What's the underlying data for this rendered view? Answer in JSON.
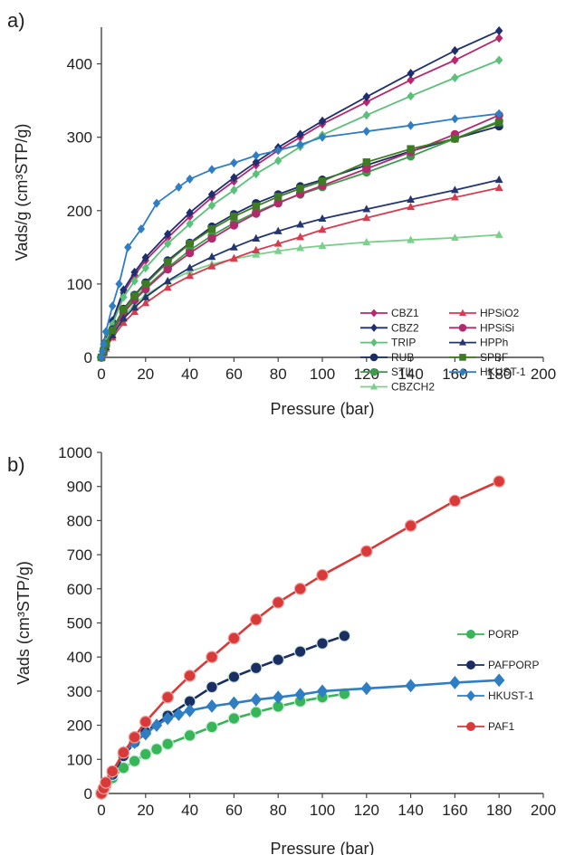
{
  "colors": {
    "CBZ1": "#b5286e",
    "CBZ2": "#1f2e6e",
    "TRIP": "#5cc07a",
    "RUB": "#1a2e63",
    "STIL": "#3e9b4b",
    "CBZCH2": "#7bd08c",
    "HPSiO2": "#d83a4e",
    "HPSiSi": "#b12a6e",
    "HPPh": "#24356f",
    "SPBF": "#3f7b25",
    "HKUST-1": "#2f7ec4",
    "PORP": "#36b559",
    "PAFPORP": "#1a2e63",
    "HKUST-1b": "#2f7ec4",
    "PAF1": "#d83a3a"
  },
  "chart_data": [
    {
      "type": "line",
      "panel_label": "a)",
      "xlabel": "Pressure (bar)",
      "ylabel": "Vads/g (cm³STP/g)",
      "xlim": [
        0,
        200
      ],
      "ylim": [
        0,
        450
      ],
      "x_ticks": [
        "0",
        "20",
        "40",
        "60",
        "80",
        "100",
        "120",
        "140",
        "160",
        "180",
        "200"
      ],
      "y_ticks": [
        "0",
        "100",
        "200",
        "300",
        "400"
      ],
      "legend_position": "bottom-right",
      "legend_columns": [
        [
          "CBZ1",
          "CBZ2",
          "TRIP",
          "RUB",
          "STIL",
          "CBZCH2"
        ],
        [
          "HPSiO2",
          "HPSiSi",
          "HPPh",
          "SPBF",
          "HKUST-1"
        ]
      ],
      "series": [
        {
          "name": "CBZ1",
          "marker": "diamond",
          "x": [
            0,
            1,
            2,
            5,
            10,
            15,
            20,
            30,
            40,
            50,
            60,
            70,
            80,
            90,
            100,
            120,
            140,
            160,
            180
          ],
          "y": [
            0,
            10,
            22,
            48,
            88,
            112,
            132,
            163,
            192,
            218,
            240,
            262,
            282,
            300,
            318,
            348,
            378,
            405,
            435
          ]
        },
        {
          "name": "CBZ2",
          "marker": "diamond",
          "x": [
            0,
            1,
            2,
            5,
            10,
            15,
            20,
            30,
            40,
            50,
            60,
            70,
            80,
            90,
            100,
            120,
            140,
            160,
            180
          ],
          "y": [
            0,
            11,
            23,
            50,
            92,
            116,
            136,
            168,
            197,
            222,
            245,
            266,
            286,
            304,
            322,
            355,
            387,
            418,
            445
          ]
        },
        {
          "name": "TRIP",
          "marker": "diamond",
          "x": [
            0,
            1,
            2,
            5,
            10,
            15,
            20,
            30,
            40,
            50,
            60,
            70,
            80,
            90,
            100,
            120,
            140,
            160,
            180
          ],
          "y": [
            0,
            10,
            21,
            45,
            82,
            104,
            122,
            155,
            182,
            207,
            228,
            250,
            268,
            287,
            303,
            330,
            356,
            381,
            405
          ]
        },
        {
          "name": "RUB",
          "marker": "circle",
          "x": [
            0,
            1,
            2,
            5,
            10,
            15,
            20,
            30,
            40,
            50,
            60,
            70,
            80,
            90,
            100,
            120,
            140,
            160,
            180
          ],
          "y": [
            0,
            9,
            18,
            38,
            66,
            85,
            102,
            132,
            156,
            178,
            195,
            210,
            222,
            233,
            242,
            262,
            281,
            298,
            315
          ]
        },
        {
          "name": "STIL",
          "marker": "circle",
          "x": [
            0,
            1,
            2,
            5,
            10,
            15,
            20,
            30,
            40,
            50,
            60,
            70,
            80,
            90,
            100,
            120,
            140,
            160,
            180
          ],
          "y": [
            0,
            8,
            17,
            35,
            62,
            80,
            95,
            122,
            146,
            166,
            183,
            198,
            211,
            222,
            232,
            252,
            274,
            298,
            322
          ]
        },
        {
          "name": "CBZCH2",
          "marker": "triangle",
          "x": [
            0,
            1,
            2,
            5,
            10,
            15,
            20,
            30,
            40,
            50,
            60,
            70,
            80,
            90,
            100,
            120,
            140,
            160,
            180
          ],
          "y": [
            0,
            7,
            15,
            32,
            56,
            72,
            85,
            103,
            117,
            127,
            134,
            140,
            145,
            149,
            152,
            157,
            160,
            163,
            167
          ]
        },
        {
          "name": "HPSiO2",
          "marker": "triangle",
          "x": [
            0,
            1,
            2,
            5,
            10,
            15,
            20,
            30,
            40,
            50,
            60,
            70,
            80,
            90,
            100,
            120,
            140,
            160,
            180
          ],
          "y": [
            0,
            6,
            12,
            27,
            47,
            62,
            74,
            95,
            111,
            124,
            135,
            146,
            155,
            164,
            174,
            190,
            205,
            218,
            231
          ]
        },
        {
          "name": "HPSiSi",
          "marker": "circle",
          "x": [
            0,
            1,
            2,
            5,
            10,
            15,
            20,
            30,
            40,
            50,
            60,
            70,
            80,
            90,
            100,
            120,
            140,
            160,
            180
          ],
          "y": [
            0,
            8,
            16,
            34,
            60,
            78,
            93,
            120,
            142,
            162,
            180,
            196,
            210,
            223,
            234,
            257,
            280,
            304,
            330
          ]
        },
        {
          "name": "HPPh",
          "marker": "triangle",
          "x": [
            0,
            1,
            2,
            5,
            10,
            15,
            20,
            30,
            40,
            50,
            60,
            70,
            80,
            90,
            100,
            120,
            140,
            160,
            180
          ],
          "y": [
            0,
            7,
            14,
            30,
            53,
            68,
            82,
            104,
            122,
            137,
            150,
            162,
            172,
            181,
            189,
            202,
            215,
            228,
            242
          ]
        },
        {
          "name": "SPBF",
          "marker": "square",
          "x": [
            0,
            1,
            2,
            5,
            10,
            15,
            20,
            30,
            40,
            50,
            60,
            70,
            80,
            90,
            100,
            120,
            140,
            160,
            180
          ],
          "y": [
            0,
            9,
            18,
            37,
            65,
            84,
            100,
            130,
            155,
            175,
            192,
            206,
            219,
            230,
            240,
            266,
            284,
            298,
            320
          ]
        },
        {
          "name": "HKUST-1",
          "marker": "diamond",
          "x": [
            0,
            0.5,
            1,
            2,
            5,
            8,
            12,
            18,
            25,
            35,
            40,
            50,
            60,
            70,
            80,
            90,
            100,
            120,
            140,
            160,
            180
          ],
          "y": [
            0,
            8,
            18,
            35,
            70,
            100,
            150,
            175,
            210,
            232,
            243,
            256,
            265,
            275,
            282,
            290,
            300,
            308,
            316,
            325,
            332
          ]
        }
      ]
    },
    {
      "type": "line",
      "panel_label": "b)",
      "xlabel": "Pressure (bar)",
      "ylabel": "Vads (cm³STP/g)",
      "xlim": [
        0,
        200
      ],
      "ylim": [
        0,
        1000
      ],
      "x_ticks": [
        "0",
        "20",
        "40",
        "60",
        "80",
        "100",
        "120",
        "140",
        "160",
        "180",
        "200"
      ],
      "y_ticks": [
        "0",
        "100",
        "200",
        "300",
        "400",
        "500",
        "600",
        "700",
        "800",
        "900",
        "1000"
      ],
      "legend_position": "right",
      "legend_entries": [
        "PORP",
        "PAFPORP",
        "HKUST-1",
        "PAF1"
      ],
      "series": [
        {
          "name": "PORP",
          "marker": "circle",
          "x": [
            0,
            1,
            2,
            5,
            10,
            15,
            20,
            25,
            30,
            40,
            50,
            60,
            70,
            80,
            90,
            100,
            110
          ],
          "y": [
            0,
            10,
            20,
            45,
            75,
            95,
            115,
            130,
            145,
            170,
            195,
            220,
            238,
            255,
            270,
            282,
            292
          ]
        },
        {
          "name": "PAFPORP",
          "marker": "circle",
          "x": [
            0,
            1,
            2,
            5,
            10,
            15,
            20,
            30,
            40,
            50,
            60,
            70,
            80,
            90,
            100,
            110
          ],
          "y": [
            0,
            12,
            25,
            55,
            110,
            150,
            180,
            228,
            270,
            312,
            342,
            368,
            392,
            416,
            440,
            462
          ]
        },
        {
          "name": "HKUST-1",
          "marker": "diamond",
          "x": [
            0,
            1,
            2,
            5,
            10,
            15,
            20,
            25,
            30,
            35,
            40,
            50,
            60,
            70,
            80,
            90,
            100,
            120,
            140,
            160,
            180
          ],
          "y": [
            0,
            15,
            30,
            60,
            120,
            150,
            175,
            200,
            220,
            232,
            243,
            256,
            265,
            275,
            282,
            290,
            300,
            308,
            316,
            325,
            332
          ]
        },
        {
          "name": "PAF1",
          "marker": "circle",
          "x": [
            0,
            1,
            2,
            5,
            10,
            15,
            20,
            30,
            40,
            50,
            60,
            70,
            80,
            90,
            100,
            120,
            140,
            160,
            180
          ],
          "y": [
            0,
            15,
            32,
            65,
            120,
            165,
            210,
            282,
            345,
            400,
            455,
            510,
            560,
            600,
            640,
            710,
            785,
            858,
            915
          ]
        }
      ]
    }
  ]
}
